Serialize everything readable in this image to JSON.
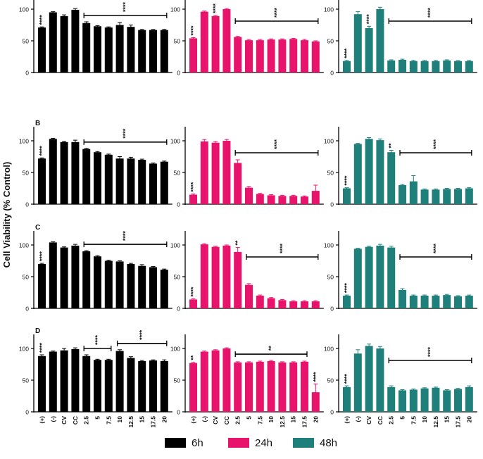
{
  "figure": {
    "ylabel": "Cell Viability (% Control)",
    "x_categories": [
      "(+)",
      "(-)",
      "CV",
      "CC",
      "2.5",
      "5",
      "7.5",
      "10",
      "12.5",
      "15",
      "17.5",
      "20"
    ],
    "legend": [
      {
        "label": "6h",
        "color": "#000000"
      },
      {
        "label": "24h",
        "color": "#e8146b"
      },
      {
        "label": "48h",
        "color": "#1e7f7b"
      }
    ]
  },
  "chart_data": [
    {
      "type": "bar",
      "panel": "A",
      "series": "6h",
      "color": "#000000",
      "categories": [
        "(+)",
        "(-)",
        "CV",
        "CC",
        "2.5",
        "5",
        "7.5",
        "10",
        "12.5",
        "15",
        "17.5",
        "20"
      ],
      "values": [
        71,
        95,
        89,
        99,
        78,
        73,
        71,
        75,
        72,
        67,
        67,
        67
      ],
      "errors": [
        1,
        1,
        2,
        2,
        2,
        1,
        1,
        4,
        3,
        1,
        1,
        1
      ],
      "ylim": [
        0,
        120
      ],
      "yticks": [
        0,
        50,
        100
      ],
      "annotations": [
        {
          "text": "****",
          "type": "vertical",
          "bar": 0
        },
        {
          "text": "****",
          "type": "bracket",
          "from": 4,
          "to": 11
        }
      ]
    },
    {
      "type": "bar",
      "panel": "A",
      "series": "24h",
      "color": "#e8146b",
      "categories": [
        "(+)",
        "(-)",
        "CV",
        "CC",
        "2.5",
        "5",
        "7.5",
        "10",
        "12.5",
        "15",
        "17.5",
        "20"
      ],
      "values": [
        54,
        96,
        89,
        100,
        56,
        51,
        51,
        52,
        52,
        53,
        51,
        49
      ],
      "errors": [
        1,
        1,
        1,
        1,
        1,
        1,
        1,
        1,
        1,
        1,
        1,
        1
      ],
      "ylim": [
        0,
        120
      ],
      "yticks": [
        0,
        50,
        100
      ],
      "annotations": [
        {
          "text": "****",
          "type": "vertical",
          "bar": 0
        },
        {
          "text": "****",
          "type": "vertical",
          "bar": 2
        },
        {
          "text": "****",
          "type": "bracket",
          "from": 4,
          "to": 11
        }
      ]
    },
    {
      "type": "bar",
      "panel": "A",
      "series": "48h",
      "color": "#1e7f7b",
      "categories": [
        "(+)",
        "(-)",
        "CV",
        "CC",
        "2.5",
        "5",
        "7.5",
        "10",
        "12.5",
        "15",
        "17.5",
        "20"
      ],
      "values": [
        18,
        92,
        70,
        100,
        19,
        20,
        18,
        18,
        18,
        19,
        18,
        18
      ],
      "errors": [
        1,
        4,
        3,
        3,
        1,
        1,
        1,
        1,
        1,
        1,
        1,
        1
      ],
      "ylim": [
        0,
        120
      ],
      "yticks": [
        0,
        50,
        100
      ],
      "annotations": [
        {
          "text": "****",
          "type": "vertical",
          "bar": 0
        },
        {
          "text": "****",
          "type": "vertical",
          "bar": 2
        },
        {
          "text": "****",
          "type": "bracket",
          "from": 4,
          "to": 11
        }
      ]
    },
    {
      "type": "bar",
      "panel": "B",
      "series": "6h",
      "color": "#000000",
      "categories": [
        "(+)",
        "(-)",
        "CV",
        "CC",
        "2.5",
        "5",
        "7.5",
        "10",
        "12.5",
        "15",
        "17.5",
        "20"
      ],
      "values": [
        72,
        103,
        98,
        98,
        87,
        82,
        78,
        72,
        72,
        70,
        64,
        67
      ],
      "errors": [
        1,
        1,
        1,
        3,
        1,
        1,
        1,
        3,
        2,
        1,
        1,
        1
      ],
      "ylim": [
        0,
        120
      ],
      "yticks": [
        0,
        50,
        100
      ],
      "annotations": [
        {
          "text": "****",
          "type": "vertical",
          "bar": 0
        },
        {
          "text": "****",
          "type": "bracket",
          "from": 4,
          "to": 11
        }
      ]
    },
    {
      "type": "bar",
      "panel": "B",
      "series": "24h",
      "color": "#e8146b",
      "categories": [
        "(+)",
        "(-)",
        "CV",
        "CC",
        "2.5",
        "5",
        "7.5",
        "10",
        "12.5",
        "15",
        "17.5",
        "20"
      ],
      "values": [
        15,
        99,
        97,
        100,
        65,
        26,
        16,
        14,
        13,
        13,
        12,
        21
      ],
      "errors": [
        1,
        3,
        2,
        2,
        5,
        2,
        1,
        1,
        1,
        1,
        1,
        9
      ],
      "ylim": [
        0,
        120
      ],
      "yticks": [
        0,
        50,
        100
      ],
      "annotations": [
        {
          "text": "****",
          "type": "vertical",
          "bar": 0
        },
        {
          "text": "****",
          "type": "bracket",
          "from": 4,
          "to": 11
        }
      ]
    },
    {
      "type": "bar",
      "panel": "B",
      "series": "48h",
      "color": "#1e7f7b",
      "categories": [
        "(+)",
        "(-)",
        "CV",
        "CC",
        "2.5",
        "5",
        "7.5",
        "10",
        "12.5",
        "15",
        "17.5",
        "20"
      ],
      "values": [
        25,
        95,
        103,
        101,
        82,
        30,
        36,
        23,
        23,
        24,
        24,
        25
      ],
      "errors": [
        1,
        1,
        2,
        2,
        3,
        1,
        9,
        1,
        1,
        1,
        1,
        1
      ],
      "ylim": [
        0,
        120
      ],
      "yticks": [
        0,
        50,
        100
      ],
      "annotations": [
        {
          "text": "****",
          "type": "vertical",
          "bar": 0
        },
        {
          "text": "**",
          "type": "vertical",
          "bar": 4
        },
        {
          "text": "****",
          "type": "bracket",
          "from": 5,
          "to": 11
        }
      ]
    },
    {
      "type": "bar",
      "panel": "C",
      "series": "6h",
      "color": "#000000",
      "categories": [
        "(+)",
        "(-)",
        "CV",
        "CC",
        "2.5",
        "5",
        "7.5",
        "10",
        "12.5",
        "15",
        "17.5",
        "20"
      ],
      "values": [
        70,
        104,
        96,
        99,
        90,
        82,
        75,
        74,
        70,
        67,
        65,
        61
      ],
      "errors": [
        1,
        1,
        1,
        2,
        1,
        1,
        1,
        1,
        1,
        2,
        1,
        1
      ],
      "ylim": [
        0,
        120
      ],
      "yticks": [
        0,
        50,
        100
      ],
      "annotations": [
        {
          "text": "****",
          "type": "vertical",
          "bar": 0
        },
        {
          "text": "****",
          "type": "bracket",
          "from": 4,
          "to": 11
        }
      ]
    },
    {
      "type": "bar",
      "panel": "C",
      "series": "24h",
      "color": "#e8146b",
      "categories": [
        "(+)",
        "(-)",
        "CV",
        "CC",
        "2.5",
        "5",
        "7.5",
        "10",
        "12.5",
        "15",
        "17.5",
        "20"
      ],
      "values": [
        14,
        101,
        97,
        99,
        89,
        37,
        20,
        16,
        13,
        11,
        11,
        11
      ],
      "errors": [
        1,
        1,
        1,
        1,
        7,
        2,
        1,
        1,
        1,
        1,
        1,
        1
      ],
      "ylim": [
        0,
        120
      ],
      "yticks": [
        0,
        50,
        100
      ],
      "annotations": [
        {
          "text": "****",
          "type": "vertical",
          "bar": 0
        },
        {
          "text": "**",
          "type": "vertical",
          "bar": 4
        },
        {
          "text": "****",
          "type": "bracket",
          "from": 5,
          "to": 11
        }
      ]
    },
    {
      "type": "bar",
      "panel": "C",
      "series": "48h",
      "color": "#1e7f7b",
      "categories": [
        "(+)",
        "(-)",
        "CV",
        "CC",
        "2.5",
        "5",
        "7.5",
        "10",
        "12.5",
        "15",
        "17.5",
        "20"
      ],
      "values": [
        20,
        94,
        97,
        99,
        96,
        29,
        20,
        20,
        20,
        21,
        19,
        20
      ],
      "errors": [
        1,
        1,
        1,
        2,
        2,
        2,
        1,
        1,
        1,
        1,
        1,
        1
      ],
      "ylim": [
        0,
        120
      ],
      "yticks": [
        0,
        50,
        100
      ],
      "annotations": [
        {
          "text": "****",
          "type": "vertical",
          "bar": 0
        },
        {
          "text": "****",
          "type": "bracket",
          "from": 5,
          "to": 11
        }
      ]
    },
    {
      "type": "bar",
      "panel": "D",
      "series": "6h",
      "color": "#000000",
      "categories": [
        "(+)",
        "(-)",
        "CV",
        "CC",
        "2.5",
        "5",
        "7.5",
        "10",
        "12.5",
        "15",
        "17.5",
        "20"
      ],
      "values": [
        88,
        95,
        97,
        99,
        88,
        82,
        82,
        96,
        85,
        80,
        81,
        80
      ],
      "errors": [
        2,
        1,
        3,
        2,
        2,
        1,
        1,
        2,
        2,
        1,
        1,
        2
      ],
      "ylim": [
        0,
        120
      ],
      "yticks": [
        0,
        50,
        100
      ],
      "annotations": [
        {
          "text": "****",
          "type": "vertical",
          "bar": 0
        },
        {
          "text": "****",
          "type": "bracket",
          "from": 4,
          "to": 6
        },
        {
          "text": "****",
          "type": "bracket",
          "from": 7,
          "to": 11
        }
      ]
    },
    {
      "type": "bar",
      "panel": "D",
      "series": "24h",
      "color": "#e8146b",
      "categories": [
        "(+)",
        "(-)",
        "CV",
        "CC",
        "2.5",
        "5",
        "7.5",
        "10",
        "12.5",
        "15",
        "17.5",
        "20"
      ],
      "values": [
        77,
        95,
        97,
        100,
        78,
        78,
        79,
        80,
        78,
        78,
        79,
        31
      ],
      "errors": [
        1,
        1,
        1,
        1,
        1,
        1,
        1,
        1,
        1,
        1,
        1,
        13
      ],
      "ylim": [
        0,
        120
      ],
      "yticks": [
        0,
        50,
        100
      ],
      "annotations": [
        {
          "text": "**",
          "type": "vertical",
          "bar": 0
        },
        {
          "text": "**",
          "type": "bracket",
          "from": 4,
          "to": 10
        },
        {
          "text": "****",
          "type": "vertical",
          "bar": 11
        }
      ]
    },
    {
      "type": "bar",
      "panel": "D",
      "series": "48h",
      "color": "#1e7f7b",
      "categories": [
        "(+)",
        "(-)",
        "CV",
        "CC",
        "2.5",
        "5",
        "7.5",
        "10",
        "12.5",
        "15",
        "17.5",
        "20"
      ],
      "values": [
        39,
        92,
        104,
        100,
        39,
        34,
        35,
        37,
        38,
        34,
        36,
        39
      ],
      "errors": [
        2,
        6,
        3,
        3,
        2,
        1,
        1,
        1,
        1,
        1,
        1,
        2
      ],
      "ylim": [
        0,
        120
      ],
      "yticks": [
        0,
        50,
        100
      ],
      "annotations": [
        {
          "text": "****",
          "type": "vertical",
          "bar": 0
        },
        {
          "text": "****",
          "type": "bracket",
          "from": 4,
          "to": 11
        }
      ]
    }
  ]
}
